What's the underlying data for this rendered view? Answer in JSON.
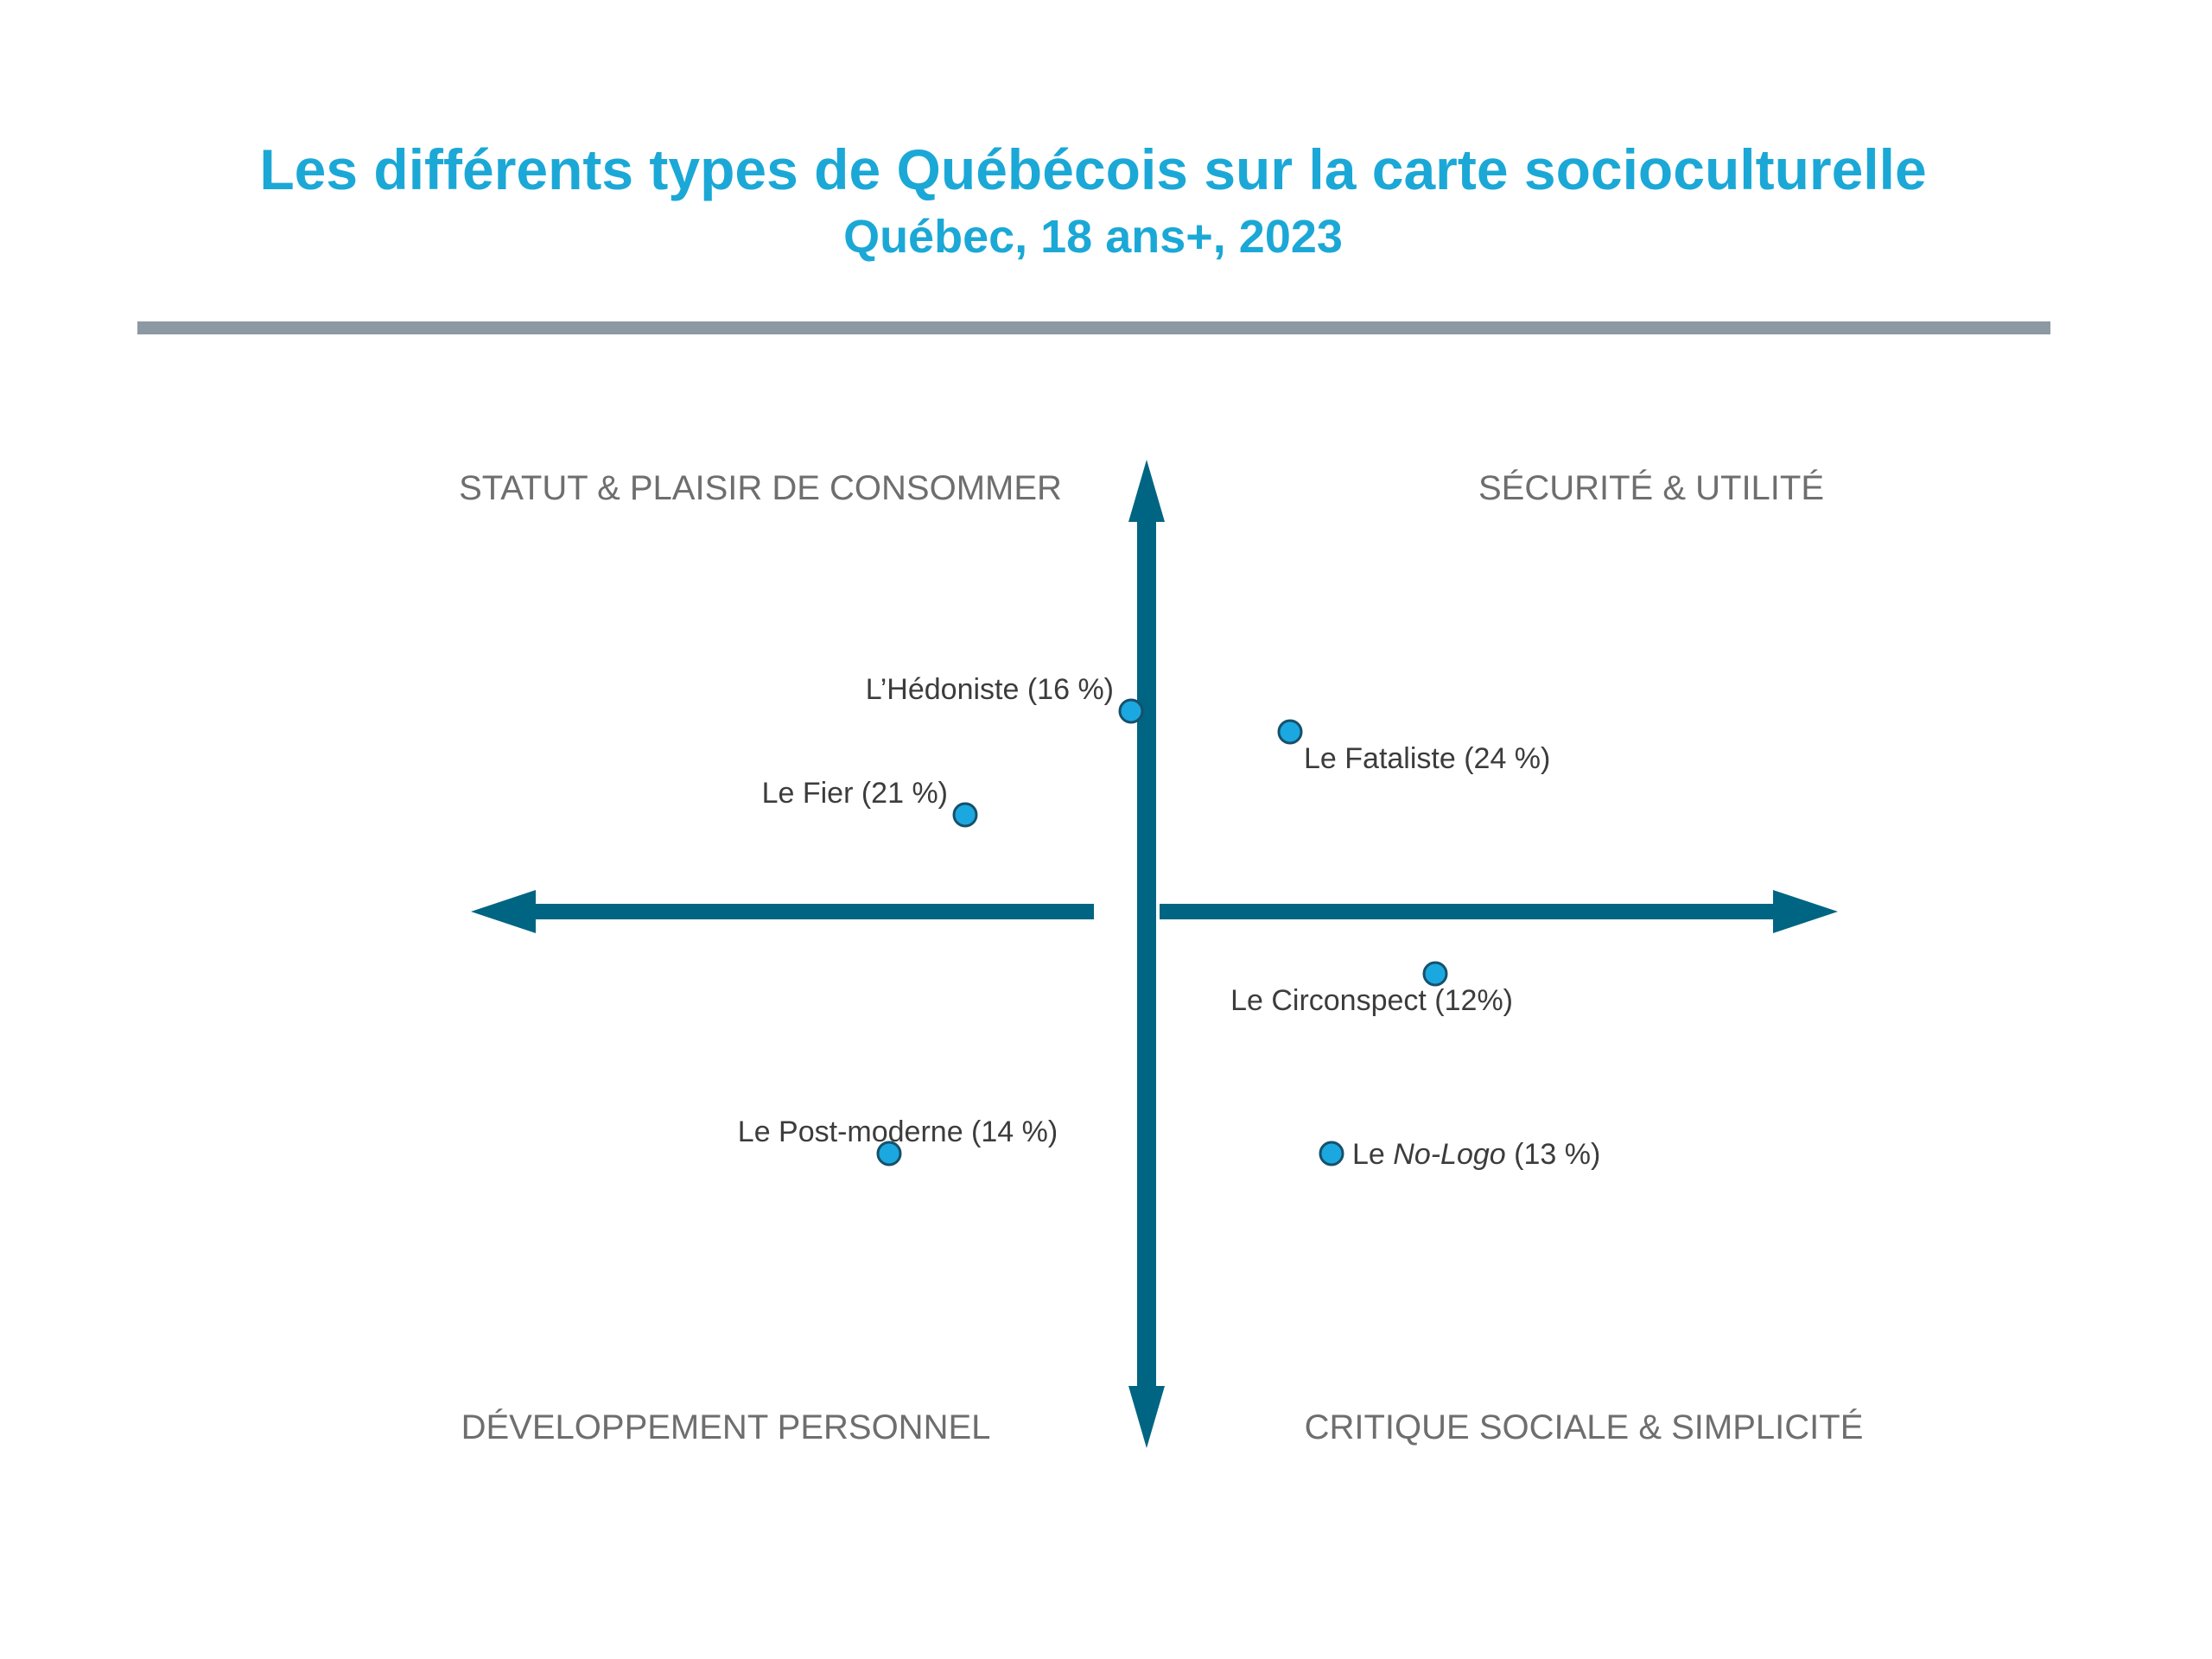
{
  "chart_data": {
    "type": "scatter",
    "title": "Les différents types de Québécois sur la carte socioculturelle",
    "subtitle": "Québec, 18 ans+, 2023",
    "xlim": [
      -1,
      1
    ],
    "ylim": [
      -1,
      1
    ],
    "grid": false,
    "colors": {
      "title": "#1ba8d6",
      "axis": "#006582",
      "point": "#1ba8e0",
      "divider": "#8c99a3"
    },
    "quadrants": [
      {
        "position": "top-left",
        "label": "STATUT & PLAISIR DE CONSOMMER"
      },
      {
        "position": "top-right",
        "label": "SÉCURITÉ & UTILITÉ"
      },
      {
        "position": "bottom-left",
        "label": "DÉVELOPPEMENT PERSONNEL"
      },
      {
        "position": "bottom-right",
        "label": "CRITIQUE SOCIALE & SIMPLICITÉ"
      }
    ],
    "points": [
      {
        "name": "L’Hédoniste",
        "pct": "(16 %)",
        "label": "L’Hédoniste (16 %)",
        "x": -0.02,
        "y": 0.29,
        "label_pos": "above-left"
      },
      {
        "name": "Le Fatalist",
        "pct": "(24 %)",
        "label": "Le Fataliste (24 %)",
        "x": 0.21,
        "y": 0.26,
        "label_pos": "below-right"
      },
      {
        "name": "Le Fier",
        "pct": "(21 %)",
        "label": "Le Fier (21 %)",
        "x": -0.26,
        "y": 0.14,
        "label_pos": "above-left"
      },
      {
        "name": "Le Circonspect",
        "pct": "(12%)",
        "label": "Le Circonspect (12%)",
        "x": 0.42,
        "y": -0.09,
        "label_pos": "below-left"
      },
      {
        "name": "Le Post-moderne",
        "pct": "(14 %)",
        "label": "Le Post-moderne (14 %)",
        "x": -0.37,
        "y": -0.35,
        "label_pos": "above"
      },
      {
        "name": "Le",
        "name_italic": "No-Logo",
        "pct": "(13 %)",
        "label": "Le No-Logo (13 %)",
        "x": 0.27,
        "y": -0.35,
        "label_pos": "right"
      }
    ]
  }
}
